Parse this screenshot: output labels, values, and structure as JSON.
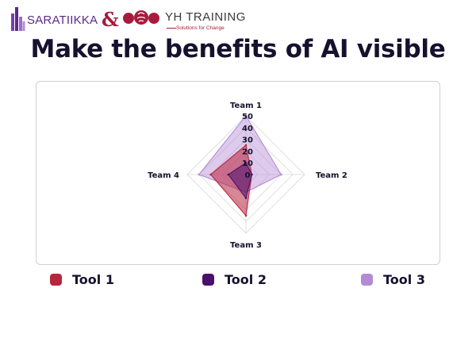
{
  "logos": {
    "brand_left": "SARATIIKKA",
    "ampersand": "&",
    "brand_right": "YH TRAINING",
    "brand_right_tagline": "Solutions for Change"
  },
  "title": "Make the benefits of AI visible",
  "colors": {
    "tool1": "#b8253c",
    "tool2": "#4b0f6e",
    "tool3": "#b48ad4",
    "title": "#15112e"
  },
  "chart_data": {
    "type": "radar",
    "categories": [
      "Team 1",
      "Team 2",
      "Team 3",
      "Team 4"
    ],
    "radial_ticks": [
      0,
      10,
      20,
      30,
      40,
      50
    ],
    "rlim": [
      0,
      50
    ],
    "series": [
      {
        "name": "Tool 1",
        "values": [
          25,
          5,
          35,
          30
        ]
      },
      {
        "name": "Tool 2",
        "values": [
          10,
          5,
          20,
          15
        ]
      },
      {
        "name": "Tool 3",
        "values": [
          50,
          30,
          15,
          40
        ]
      }
    ],
    "legend_position": "bottom"
  }
}
